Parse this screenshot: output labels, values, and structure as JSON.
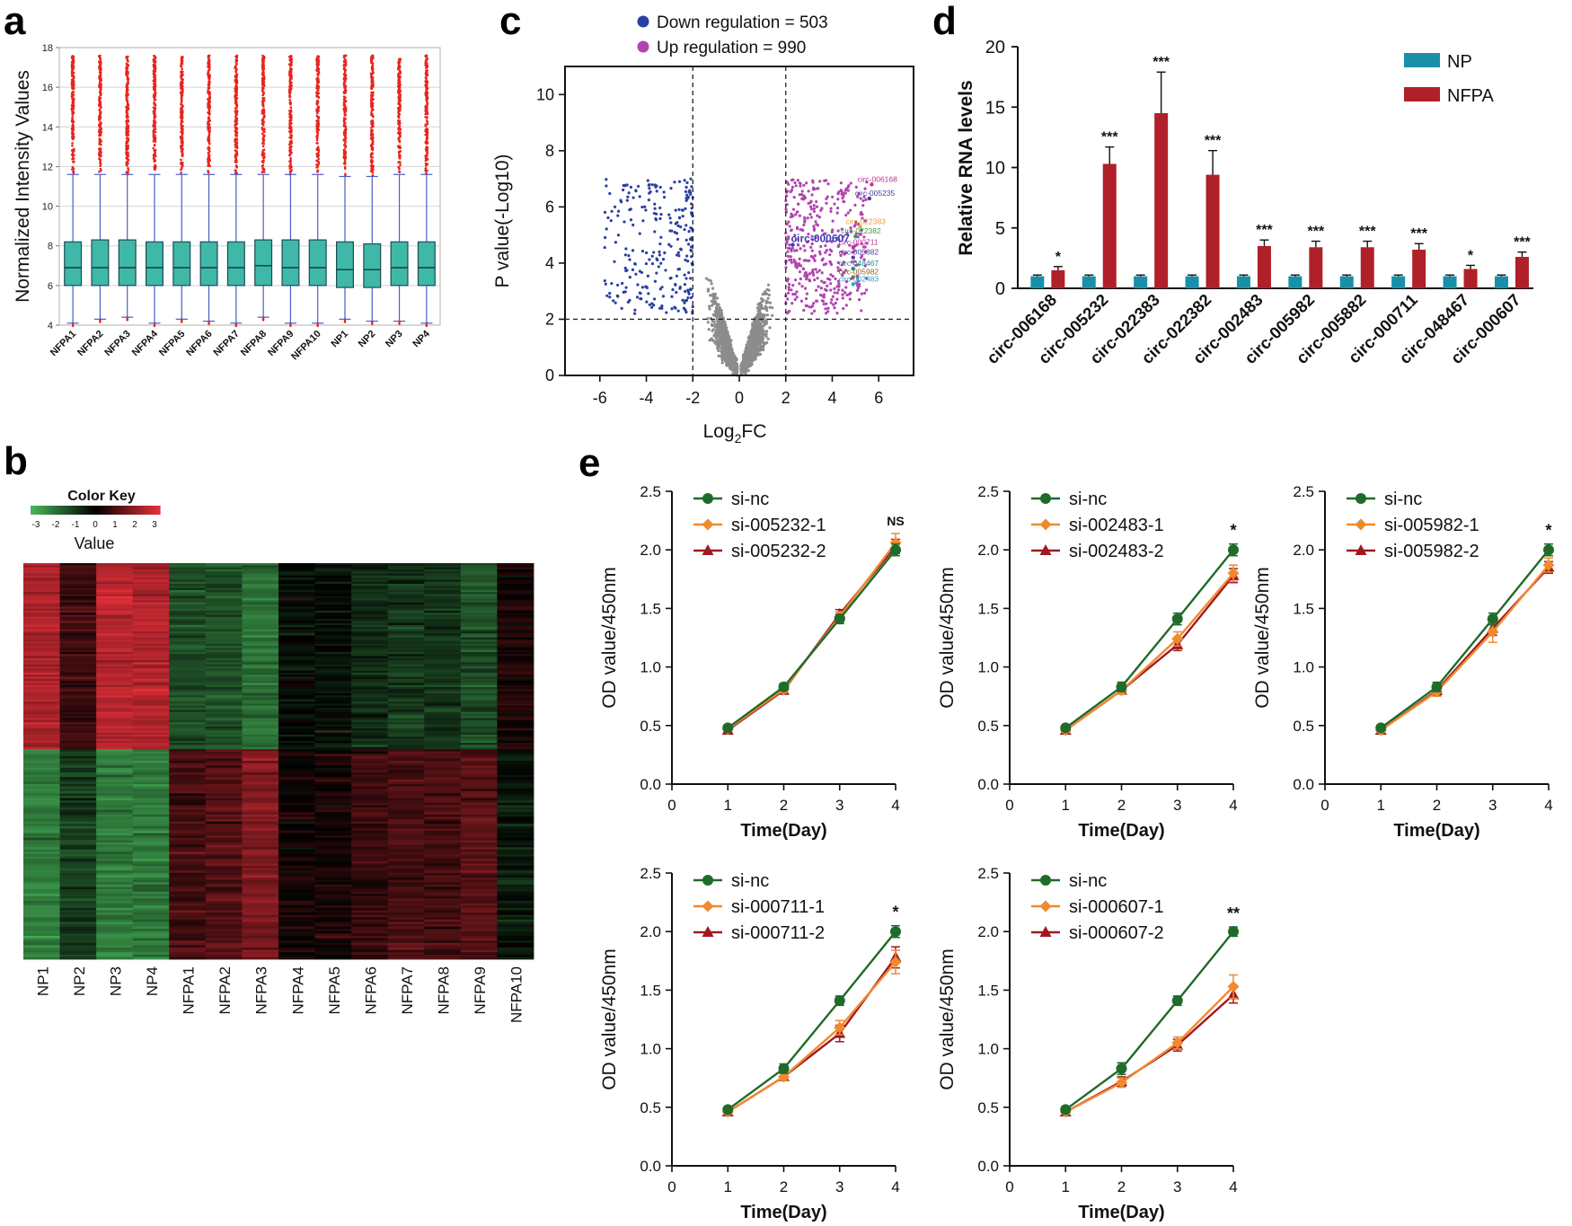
{
  "panels": {
    "a": "a",
    "b": "b",
    "c": "c",
    "d": "d",
    "e": "e"
  },
  "chart_data": [
    {
      "id": "a",
      "type": "box",
      "ylabel": "Normalized Intensity Values",
      "ylim": [
        4,
        18
      ],
      "yticks": [
        4,
        6,
        8,
        10,
        12,
        14,
        16,
        18
      ],
      "grid": true,
      "categories": [
        "NFPA1",
        "NFPA2",
        "NFPA3",
        "NFPA4",
        "NFPA5",
        "NFPA6",
        "NFPA7",
        "NFPA8",
        "NFPA9",
        "NFPA10",
        "NP1",
        "NP2",
        "NP3",
        "NP4"
      ],
      "boxes": [
        {
          "median": 6.9,
          "q1": 6.0,
          "q3": 8.2,
          "whisker_low": 4.1,
          "whisker_high": 11.6,
          "outlier_max": 17.6
        },
        {
          "median": 6.9,
          "q1": 6.0,
          "q3": 8.3,
          "whisker_low": 4.3,
          "whisker_high": 11.6,
          "outlier_max": 17.6
        },
        {
          "median": 6.9,
          "q1": 6.0,
          "q3": 8.3,
          "whisker_low": 4.4,
          "whisker_high": 11.6,
          "outlier_max": 17.6
        },
        {
          "median": 6.9,
          "q1": 6.0,
          "q3": 8.2,
          "whisker_low": 4.1,
          "whisker_high": 11.6,
          "outlier_max": 17.6
        },
        {
          "median": 6.9,
          "q1": 6.0,
          "q3": 8.2,
          "whisker_low": 4.3,
          "whisker_high": 11.6,
          "outlier_max": 17.6
        },
        {
          "median": 6.9,
          "q1": 6.0,
          "q3": 8.2,
          "whisker_low": 4.2,
          "whisker_high": 11.6,
          "outlier_max": 17.6
        },
        {
          "median": 6.9,
          "q1": 6.0,
          "q3": 8.2,
          "whisker_low": 4.1,
          "whisker_high": 11.6,
          "outlier_max": 17.6
        },
        {
          "median": 7.0,
          "q1": 6.0,
          "q3": 8.3,
          "whisker_low": 4.4,
          "whisker_high": 11.6,
          "outlier_max": 17.6
        },
        {
          "median": 6.9,
          "q1": 6.0,
          "q3": 8.3,
          "whisker_low": 4.1,
          "whisker_high": 11.6,
          "outlier_max": 17.6
        },
        {
          "median": 6.9,
          "q1": 6.0,
          "q3": 8.3,
          "whisker_low": 4.1,
          "whisker_high": 11.6,
          "outlier_max": 17.6
        },
        {
          "median": 6.8,
          "q1": 5.9,
          "q3": 8.2,
          "whisker_low": 4.3,
          "whisker_high": 11.5,
          "outlier_max": 17.6
        },
        {
          "median": 6.8,
          "q1": 5.9,
          "q3": 8.1,
          "whisker_low": 4.2,
          "whisker_high": 11.5,
          "outlier_max": 17.6
        },
        {
          "median": 6.9,
          "q1": 6.0,
          "q3": 8.2,
          "whisker_low": 4.2,
          "whisker_high": 11.6,
          "outlier_max": 17.6
        },
        {
          "median": 6.9,
          "q1": 6.0,
          "q3": 8.2,
          "whisker_low": 4.1,
          "whisker_high": 11.6,
          "outlier_max": 17.6
        }
      ],
      "colors": {
        "box": "#3fb8a8",
        "whisker": "#4a5ec8",
        "outlier": "#e8251e"
      }
    },
    {
      "id": "b",
      "type": "heatmap",
      "title": "Color Key",
      "key_label": "Value",
      "key_ticks": [
        "-3",
        "-2",
        "-1",
        "0",
        "1",
        "2",
        "3"
      ],
      "columns": [
        "NP1",
        "NP2",
        "NP3",
        "NP4",
        "NFPA1",
        "NFPA2",
        "NFPA3",
        "NFPA4",
        "NFPA5",
        "NFPA6",
        "NFPA7",
        "NFPA8",
        "NFPA9",
        "NFPA10"
      ],
      "row_groups": [
        {
          "name": "upper",
          "column_means": [
            2.2,
            0.8,
            2.4,
            2.3,
            -1.2,
            -1.3,
            -1.8,
            -0.2,
            -0.3,
            -0.7,
            -0.9,
            -0.9,
            -1.3,
            0.3
          ]
        },
        {
          "name": "lower",
          "column_means": [
            -2.0,
            -1.0,
            -2.0,
            -2.0,
            0.9,
            1.1,
            1.6,
            0.2,
            0.3,
            0.7,
            0.9,
            0.9,
            1.1,
            -0.4
          ]
        }
      ],
      "colors": {
        "low": "#48b85a",
        "mid": "#000000",
        "high": "#e8303a"
      }
    },
    {
      "id": "c",
      "type": "scatter",
      "xlabel_main": "Log",
      "xlabel_sub": "2",
      "xlabel_end": "FC",
      "ylabel": "P value(-Log10)",
      "xlim": [
        -7.5,
        7.5
      ],
      "ylim": [
        0,
        11
      ],
      "xticks": [
        -6,
        -4,
        -2,
        0,
        2,
        4,
        6
      ],
      "yticks": [
        0,
        2,
        4,
        6,
        8,
        10
      ],
      "thresholds": {
        "x": [
          -2,
          2
        ],
        "y": 2
      },
      "legend": [
        {
          "label": "Down regulation = 503",
          "color": "#2940a0"
        },
        {
          "label": "Up regulation = 990",
          "color": "#b045b0"
        }
      ],
      "colors": {
        "ns": "#8c8c8c",
        "down": "#2940a0",
        "up": "#b045b0"
      },
      "annotations": [
        {
          "label": "circ-006168",
          "x": 5.7,
          "y": 6.8,
          "color": "#c0309a",
          "size": "small"
        },
        {
          "label": "circ-005235",
          "x": 5.6,
          "y": 6.3,
          "color": "#4a3a9a",
          "size": "small"
        },
        {
          "label": "circ-022383",
          "x": 5.2,
          "y": 5.3,
          "color": "#e8a13a",
          "size": "small"
        },
        {
          "label": "circ-022382",
          "x": 5.0,
          "y": 4.95,
          "color": "#3a9a4a",
          "size": "small"
        },
        {
          "label": "circ-000711",
          "x": 4.9,
          "y": 4.55,
          "color": "#c0309a",
          "size": "small"
        },
        {
          "label": "circ-005882",
          "x": 4.9,
          "y": 4.2,
          "color": "#4a3aa8",
          "size": "small"
        },
        {
          "label": "circ-048467",
          "x": 4.9,
          "y": 3.8,
          "color": "#1a8a8a",
          "size": "small"
        },
        {
          "label": "circ-005982",
          "x": 4.9,
          "y": 3.5,
          "color": "#8a6a1a",
          "size": "small"
        },
        {
          "label": "circ-002483",
          "x": 4.9,
          "y": 3.25,
          "color": "#2aa8c8",
          "size": "small"
        },
        {
          "label": "circ-000607",
          "x": 2.3,
          "y": 4.65,
          "color": "#3a3ab8",
          "size": "large"
        }
      ]
    },
    {
      "id": "d",
      "type": "bar",
      "ylabel": "Relative RNA levels",
      "ylim": [
        0,
        20
      ],
      "yticks": [
        0,
        5,
        10,
        15,
        20
      ],
      "categories": [
        "circ-006168",
        "circ-005232",
        "circ-022383",
        "circ-022382",
        "circ-002483",
        "circ-005982",
        "circ-005882",
        "circ-000711",
        "circ-048467",
        "circ-000607"
      ],
      "series": [
        {
          "name": "NP",
          "color": "#1a8fa8",
          "values": [
            1,
            1,
            1,
            1,
            1,
            1,
            1,
            1,
            1,
            1
          ],
          "errors": [
            0.1,
            0.1,
            0.1,
            0.1,
            0.1,
            0.1,
            0.1,
            0.1,
            0.1,
            0.1
          ]
        },
        {
          "name": "NFPA",
          "color": "#b02028",
          "values": [
            1.5,
            10.3,
            14.5,
            9.4,
            3.5,
            3.4,
            3.4,
            3.2,
            1.6,
            2.6
          ],
          "errors": [
            0.3,
            1.4,
            3.4,
            2.0,
            0.5,
            0.5,
            0.5,
            0.5,
            0.3,
            0.4
          ]
        }
      ],
      "significance": [
        "*",
        "***",
        "***",
        "***",
        "***",
        "***",
        "***",
        "***",
        "*",
        "***"
      ]
    },
    {
      "id": "e1",
      "type": "line",
      "xlabel": "Time(Day)",
      "ylabel": "OD value/450nm",
      "xlim": [
        0,
        4
      ],
      "ylim": [
        0,
        2.5
      ],
      "xticks": [
        0,
        1,
        2,
        3,
        4
      ],
      "yticks": [
        "0.0",
        "0.5",
        "1.0",
        "1.5",
        "2.0",
        "2.5"
      ],
      "x": [
        1,
        2,
        3,
        4
      ],
      "series": [
        {
          "name": "si-nc",
          "color": "#1f6b2a",
          "marker": "circle",
          "values": [
            0.48,
            0.83,
            1.41,
            2.0
          ],
          "errors": [
            0.02,
            0.03,
            0.04,
            0.05
          ]
        },
        {
          "name": "si-005232-1",
          "color": "#f08a30",
          "marker": "diamond",
          "values": [
            0.47,
            0.81,
            1.43,
            2.06
          ],
          "errors": [
            0.02,
            0.03,
            0.04,
            0.08
          ]
        },
        {
          "name": "si-005232-2",
          "color": "#a01820",
          "marker": "triangle",
          "values": [
            0.46,
            0.8,
            1.45,
            2.03
          ],
          "errors": [
            0.02,
            0.03,
            0.04,
            0.06
          ]
        }
      ],
      "significance": "NS"
    },
    {
      "id": "e2",
      "type": "line",
      "xlabel": "Time(Day)",
      "ylabel": "OD value/450nm",
      "xlim": [
        0,
        4
      ],
      "ylim": [
        0,
        2.5
      ],
      "xticks": [
        0,
        1,
        2,
        3,
        4
      ],
      "yticks": [
        "0.0",
        "0.5",
        "1.0",
        "1.5",
        "2.0",
        "2.5"
      ],
      "x": [
        1,
        2,
        3,
        4
      ],
      "series": [
        {
          "name": "si-nc",
          "color": "#1f6b2a",
          "marker": "circle",
          "values": [
            0.48,
            0.83,
            1.41,
            2.0
          ],
          "errors": [
            0.02,
            0.04,
            0.05,
            0.05
          ]
        },
        {
          "name": "si-002483-1",
          "color": "#f08a30",
          "marker": "diamond",
          "values": [
            0.46,
            0.8,
            1.24,
            1.8
          ],
          "errors": [
            0.02,
            0.03,
            0.06,
            0.07
          ]
        },
        {
          "name": "si-002483-2",
          "color": "#a01820",
          "marker": "triangle",
          "values": [
            0.46,
            0.8,
            1.19,
            1.78
          ],
          "errors": [
            0.02,
            0.03,
            0.05,
            0.06
          ]
        }
      ],
      "significance": "*"
    },
    {
      "id": "e3",
      "type": "line",
      "xlabel": "Time(Day)",
      "ylabel": "OD value/450nm",
      "xlim": [
        0,
        4
      ],
      "ylim": [
        0,
        2.5
      ],
      "xticks": [
        0,
        1,
        2,
        3,
        4
      ],
      "yticks": [
        "0.0",
        "0.5",
        "1.0",
        "1.5",
        "2.0",
        "2.5"
      ],
      "x": [
        1,
        2,
        3,
        4
      ],
      "series": [
        {
          "name": "si-nc",
          "color": "#1f6b2a",
          "marker": "circle",
          "values": [
            0.48,
            0.83,
            1.41,
            2.0
          ],
          "errors": [
            0.02,
            0.04,
            0.05,
            0.05
          ]
        },
        {
          "name": "si-005982-1",
          "color": "#f08a30",
          "marker": "diamond",
          "values": [
            0.46,
            0.79,
            1.3,
            1.87
          ],
          "errors": [
            0.02,
            0.04,
            0.09,
            0.06
          ]
        },
        {
          "name": "si-005982-2",
          "color": "#a01820",
          "marker": "triangle",
          "values": [
            0.46,
            0.8,
            1.33,
            1.85
          ],
          "errors": [
            0.02,
            0.04,
            0.06,
            0.05
          ]
        }
      ],
      "significance": "*"
    },
    {
      "id": "e4",
      "type": "line",
      "xlabel": "Time(Day)",
      "ylabel": "OD value/450nm",
      "xlim": [
        0,
        4
      ],
      "ylim": [
        0,
        2.5
      ],
      "xticks": [
        0,
        1,
        2,
        3,
        4
      ],
      "yticks": [
        "0.0",
        "0.5",
        "1.0",
        "1.5",
        "2.0",
        "2.5"
      ],
      "x": [
        1,
        2,
        3,
        4
      ],
      "series": [
        {
          "name": "si-nc",
          "color": "#1f6b2a",
          "marker": "circle",
          "values": [
            0.48,
            0.83,
            1.41,
            2.0
          ],
          "errors": [
            0.02,
            0.04,
            0.04,
            0.05
          ]
        },
        {
          "name": "si-000711-1",
          "color": "#f08a30",
          "marker": "diamond",
          "values": [
            0.46,
            0.76,
            1.18,
            1.74
          ],
          "errors": [
            0.02,
            0.03,
            0.06,
            0.1
          ]
        },
        {
          "name": "si-000711-2",
          "color": "#a01820",
          "marker": "triangle",
          "values": [
            0.46,
            0.76,
            1.13,
            1.78
          ],
          "errors": [
            0.02,
            0.03,
            0.07,
            0.09
          ]
        }
      ],
      "significance": "*"
    },
    {
      "id": "e5",
      "type": "line",
      "xlabel": "Time(Day)",
      "ylabel": "OD value/450nm",
      "xlim": [
        0,
        4
      ],
      "ylim": [
        0,
        2.5
      ],
      "xticks": [
        0,
        1,
        2,
        3,
        4
      ],
      "yticks": [
        "0.0",
        "0.5",
        "1.0",
        "1.5",
        "2.0",
        "2.5"
      ],
      "x": [
        1,
        2,
        3,
        4
      ],
      "series": [
        {
          "name": "si-nc",
          "color": "#1f6b2a",
          "marker": "circle",
          "values": [
            0.48,
            0.83,
            1.41,
            2.0
          ],
          "errors": [
            0.02,
            0.05,
            0.04,
            0.04
          ]
        },
        {
          "name": "si-000607-1",
          "color": "#f08a30",
          "marker": "diamond",
          "values": [
            0.46,
            0.71,
            1.05,
            1.53
          ],
          "errors": [
            0.02,
            0.04,
            0.05,
            0.1
          ]
        },
        {
          "name": "si-000607-2",
          "color": "#a01820",
          "marker": "triangle",
          "values": [
            0.46,
            0.72,
            1.03,
            1.46
          ],
          "errors": [
            0.02,
            0.04,
            0.05,
            0.07
          ]
        }
      ],
      "significance": "**"
    }
  ]
}
